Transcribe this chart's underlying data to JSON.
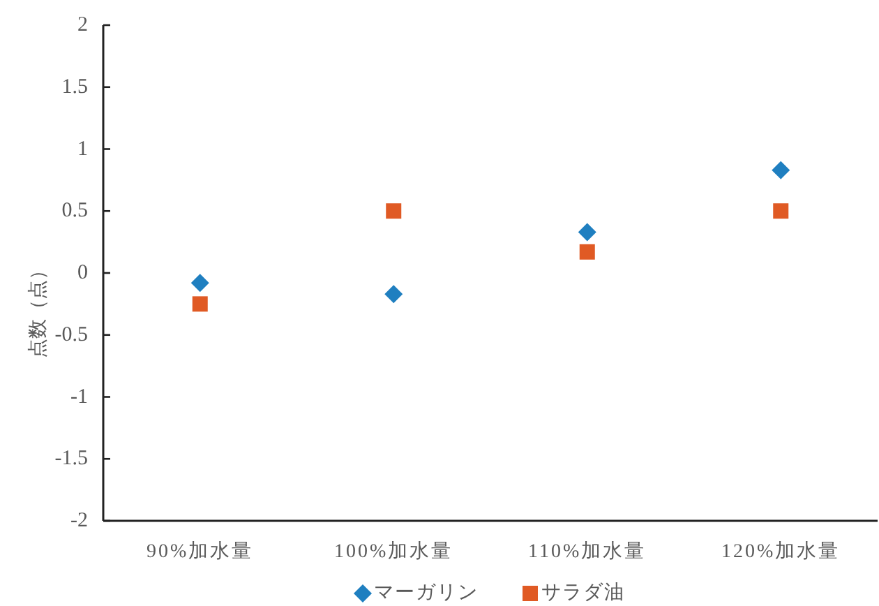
{
  "chart_data": {
    "type": "scatter",
    "ylabel": "点数（点）",
    "categories": [
      "90%加水量",
      "100%加水量",
      "110%加水量",
      "120%加水量"
    ],
    "series": [
      {
        "name": "マーガリン",
        "color": "#1f7fc0",
        "marker": "diamond",
        "values": [
          -0.08,
          -0.17,
          0.33,
          0.83
        ]
      },
      {
        "name": "サラダ油",
        "color": "#e05a24",
        "marker": "square",
        "values": [
          -0.25,
          0.5,
          0.17,
          0.5
        ]
      }
    ],
    "ylim": [
      -2,
      2
    ],
    "yticks": [
      -2,
      -1.5,
      -1,
      -0.5,
      0,
      0.5,
      1,
      1.5,
      2
    ],
    "legend": "bottom",
    "grid": false
  }
}
